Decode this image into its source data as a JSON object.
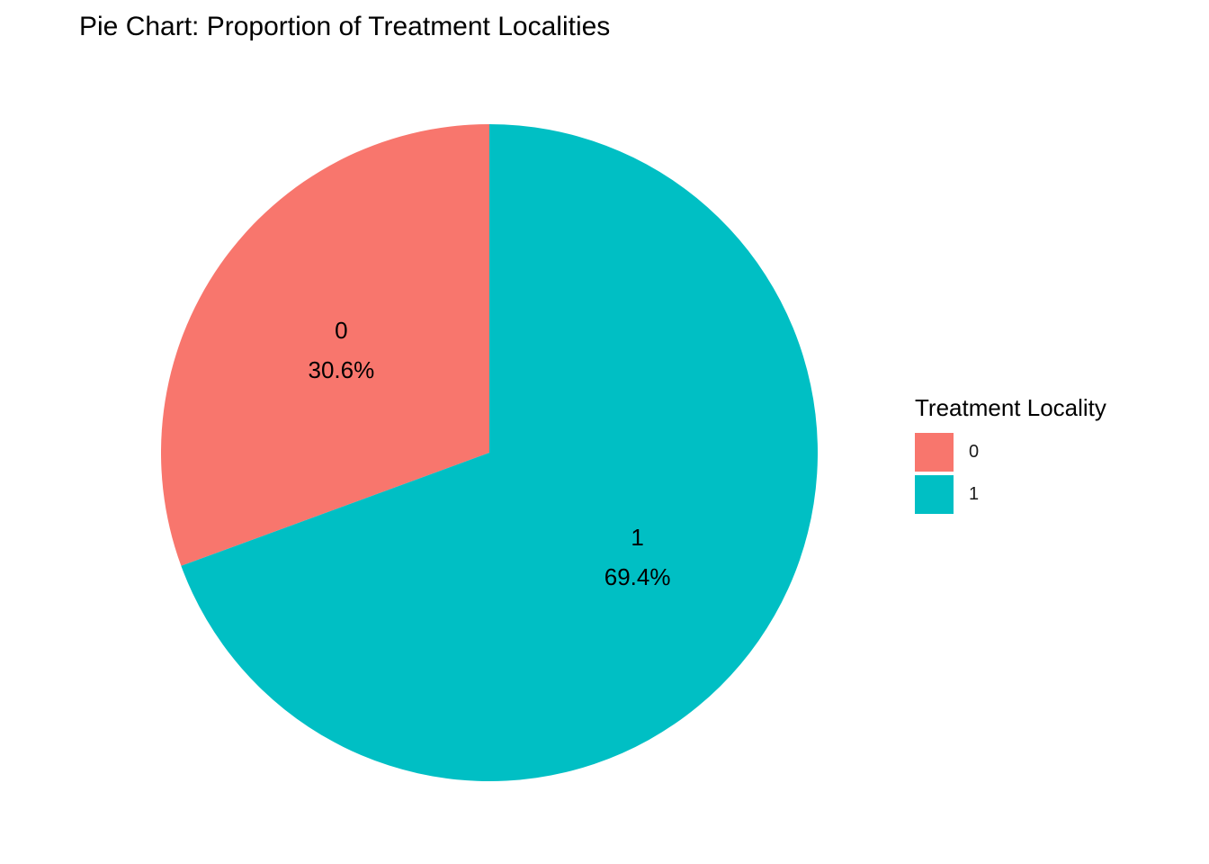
{
  "chart_data": {
    "type": "pie",
    "title": "Pie Chart: Proportion of Treatment Localities",
    "categories": [
      "0",
      "1"
    ],
    "values": [
      30.6,
      69.4
    ],
    "labels": [
      "30.6%",
      "69.4%"
    ],
    "colors": [
      "#F8766D",
      "#00BFC4"
    ],
    "start": "top",
    "direction": "counterclockwise",
    "legend": {
      "title": "Treatment Locality",
      "placement": "right",
      "items": [
        {
          "label": "0",
          "color": "#F8766D"
        },
        {
          "label": "1",
          "color": "#00BFC4"
        }
      ]
    }
  }
}
